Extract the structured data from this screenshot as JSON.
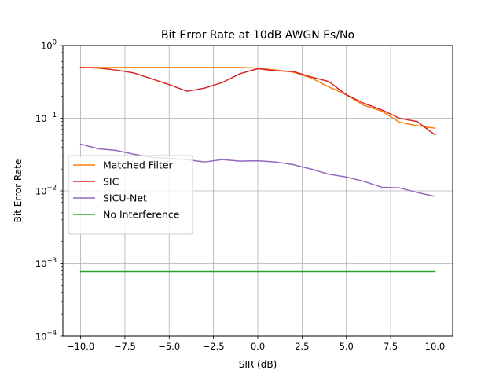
{
  "chart_data": {
    "type": "line",
    "title": "Bit Error Rate at 10dB AWGN Es/No",
    "xlabel": "SIR (dB)",
    "ylabel": "Bit Error Rate",
    "xlim": [
      -11,
      11
    ],
    "ylim": [
      0.0001,
      1
    ],
    "yscale": "log",
    "grid": true,
    "legend_position": "center-left",
    "xticks": [
      -10,
      -7.5,
      -5,
      -2.5,
      0,
      2.5,
      5,
      7.5,
      10
    ],
    "xtick_labels": [
      "−10.0",
      "−7.5",
      "−5.0",
      "−2.5",
      "0.0",
      "2.5",
      "5.0",
      "7.5",
      "10.0"
    ],
    "ytick_labels": [
      {
        "base": "10",
        "exp": "0",
        "value": 1
      },
      {
        "base": "10",
        "exp": "−1",
        "value": 0.1
      },
      {
        "base": "10",
        "exp": "−2",
        "value": 0.01
      },
      {
        "base": "10",
        "exp": "−3",
        "value": 0.001
      },
      {
        "base": "10",
        "exp": "−4",
        "value": 0.0001
      }
    ],
    "x": [
      -10,
      -9,
      -8,
      -7,
      -6,
      -5,
      -4,
      -3,
      -2,
      -1,
      0,
      1,
      2,
      3,
      4,
      5,
      6,
      7,
      8,
      9,
      10
    ],
    "series": [
      {
        "name": "Matched Filter",
        "color": "#ff7f0e",
        "values": [
          0.5,
          0.5,
          0.5,
          0.5,
          0.5,
          0.5,
          0.5,
          0.5,
          0.5,
          0.5,
          0.49,
          0.46,
          0.43,
          0.36,
          0.27,
          0.21,
          0.15,
          0.125,
          0.088,
          0.079,
          0.073
        ]
      },
      {
        "name": "SIC",
        "color": "#d62728",
        "values": [
          0.5,
          0.49,
          0.46,
          0.42,
          0.35,
          0.29,
          0.235,
          0.26,
          0.31,
          0.41,
          0.48,
          0.45,
          0.44,
          0.37,
          0.32,
          0.21,
          0.16,
          0.13,
          0.1,
          0.09,
          0.059
        ]
      },
      {
        "name": "SICU-Net",
        "color": "#9467bd",
        "values": [
          0.044,
          0.038,
          0.036,
          0.032,
          0.029,
          0.028,
          0.027,
          0.025,
          0.027,
          0.0257,
          0.026,
          0.025,
          0.023,
          0.02,
          0.017,
          0.0155,
          0.0135,
          0.0112,
          0.011,
          0.0095,
          0.0084
        ]
      },
      {
        "name": "No Interference",
        "color": "#2ca02c",
        "values": [
          0.00078,
          0.00078,
          0.00078,
          0.00078,
          0.00078,
          0.00078,
          0.00078,
          0.00078,
          0.00078,
          0.00078,
          0.00078,
          0.00078,
          0.00078,
          0.00078,
          0.00078,
          0.00078,
          0.00078,
          0.00078,
          0.00078,
          0.00078,
          0.00078
        ]
      }
    ]
  }
}
